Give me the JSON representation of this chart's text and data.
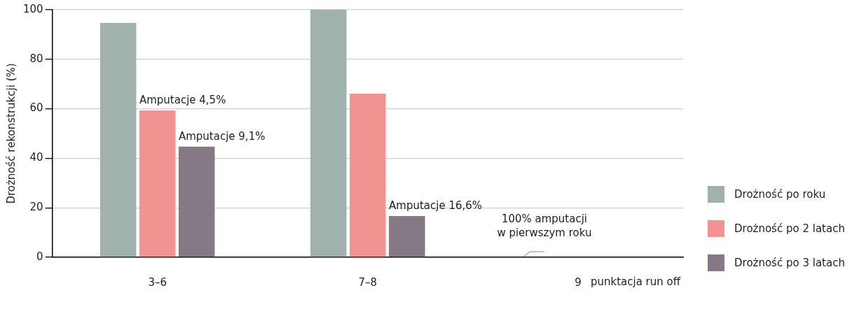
{
  "chart_data": {
    "type": "bar",
    "categories": [
      "3–6",
      "7–8",
      "9"
    ],
    "series": [
      {
        "name": "Drożność po roku",
        "color": "#a1b2ae",
        "values": [
          94.7,
          100,
          0
        ]
      },
      {
        "name": "Drożność po 2 latach",
        "color": "#f19391",
        "values": [
          59.3,
          66.1,
          0
        ]
      },
      {
        "name": "Drożność po 3 latach",
        "color": "#857985",
        "values": [
          44.7,
          16.7,
          0
        ]
      }
    ],
    "xlabel": "punktacja run off",
    "ylabel": "Drożność rekonstrukcji (%)",
    "ylim": [
      0,
      100
    ],
    "yticks": [
      0,
      20,
      40,
      60,
      80,
      100
    ],
    "grid": "y",
    "legend": "right",
    "annotations": [
      "Amputacje 4,5%",
      "Amputacje 9,1%",
      "Amputacje 16,6%",
      "100% amputacji\nw pierwszym roku"
    ]
  }
}
